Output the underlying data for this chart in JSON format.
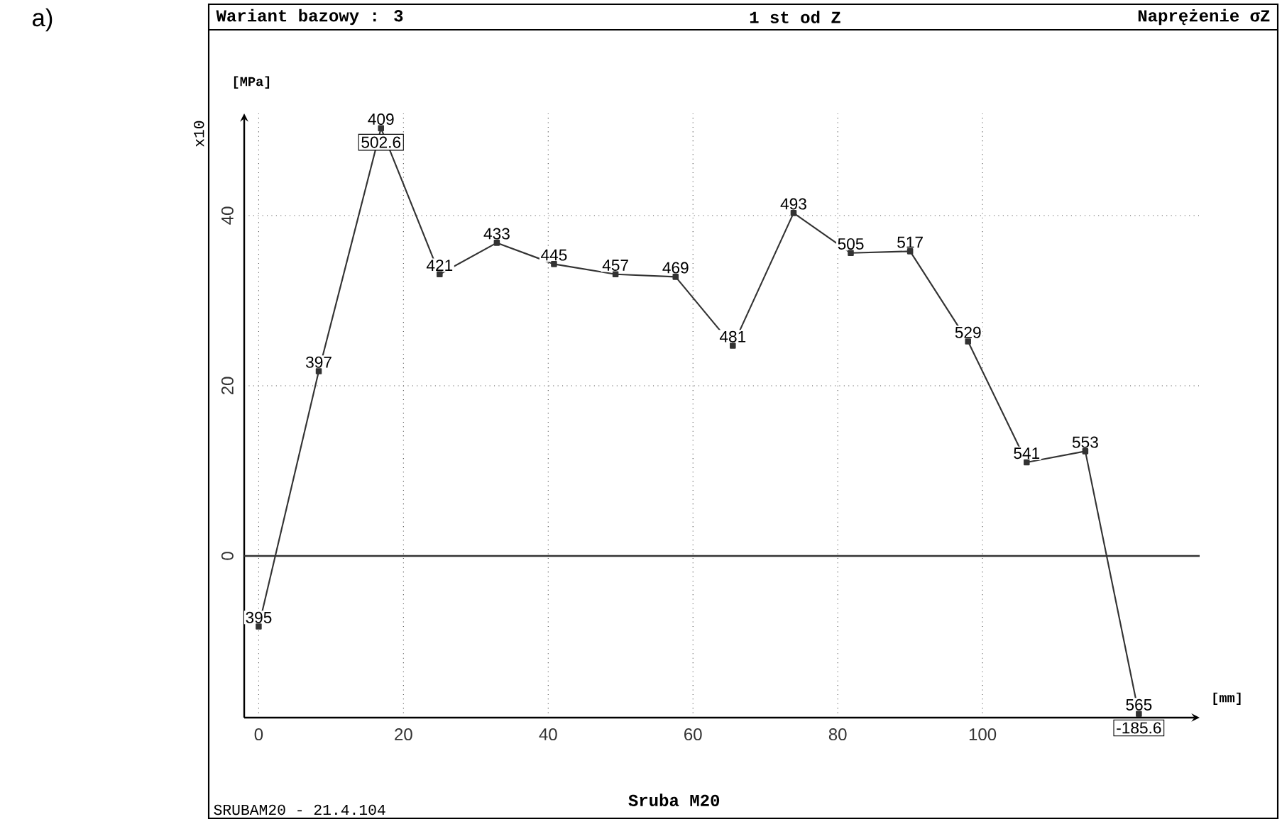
{
  "chart_data": {
    "type": "line",
    "title": "Sruba M20",
    "xlabel": "[mm]",
    "ylabel": "[MPa]",
    "y2label": "x10",
    "series": [
      {
        "color": "#333333",
        "x": [
          0,
          8.3,
          16.9,
          25,
          32.9,
          40.8,
          49.3,
          57.6,
          65.5,
          73.9,
          81.8,
          90,
          98,
          106.1,
          114.2,
          121.6
        ],
        "values": [
          -8.3,
          21.7,
          50.26,
          33.1,
          36.8,
          34.3,
          33.1,
          32.8,
          24.7,
          40.3,
          35.6,
          35.8,
          25.2,
          11,
          12.3,
          -18.56
        ]
      }
    ],
    "xlim": [
      -2,
      130
    ],
    "ylim": [
      -19,
      52
    ],
    "xticks": [
      0,
      20,
      40,
      60,
      80,
      100
    ],
    "yticks": [
      0,
      20,
      40
    ],
    "grid": true,
    "marker": "square",
    "line_style": "solid",
    "ref_lines": [
      {
        "axis": "y",
        "value": 0,
        "color": "#333333",
        "line_style": "solid"
      }
    ],
    "annotations": [
      "a)",
      "Wariant bazowy : 3",
      "1 st od Z",
      "Naprężenie σZ",
      "SRUBAM20 -   21.4.104",
      {
        "text": "395",
        "x": 0,
        "y": -8.3
      },
      {
        "text": "397",
        "x": 8.3,
        "y": 21.7
      },
      {
        "text": "409",
        "x": 16.9,
        "y": 50.26
      },
      {
        "text": "502.6",
        "x": 16.9,
        "y": 50.26
      },
      {
        "text": "421",
        "x": 25,
        "y": 33.1
      },
      {
        "text": "433",
        "x": 32.9,
        "y": 36.8
      },
      {
        "text": "445",
        "x": 40.8,
        "y": 34.3
      },
      {
        "text": "457",
        "x": 49.3,
        "y": 33.1
      },
      {
        "text": "469",
        "x": 57.6,
        "y": 32.8
      },
      {
        "text": "481",
        "x": 65.5,
        "y": 24.7
      },
      {
        "text": "493",
        "x": 73.9,
        "y": 40.3
      },
      {
        "text": "505",
        "x": 81.8,
        "y": 35.6
      },
      {
        "text": "517",
        "x": 90,
        "y": 35.8
      },
      {
        "text": "529",
        "x": 98,
        "y": 25.2
      },
      {
        "text": "541",
        "x": 106.1,
        "y": 11
      },
      {
        "text": "553",
        "x": 114.2,
        "y": 12.3
      },
      {
        "text": "565",
        "x": 121.6,
        "y": -18.56
      },
      {
        "text": "-185.6",
        "x": 121.6,
        "y": -18.56
      }
    ]
  }
}
